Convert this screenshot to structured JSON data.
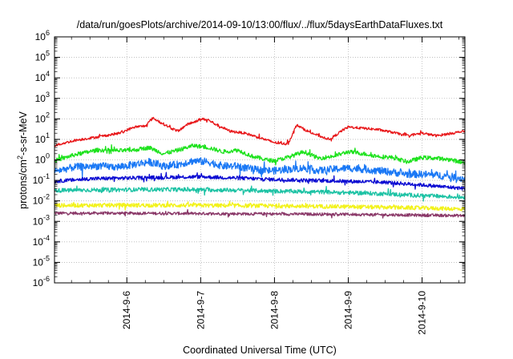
{
  "chart_data": {
    "type": "line",
    "title": "/data/run/goesPlots/archive/2014-09-10/13:00/flux/../flux/5daysEarthDataFluxes.txt",
    "xlabel": "Coordinated Universal Time (UTC)",
    "ylabel": {
      "prefix": "protons/cm",
      "sup": "2",
      "suffix": "-s-sr-MeV"
    },
    "yscale": "log",
    "ylim": [
      1e-06,
      1000000.0
    ],
    "xlim": [
      5.02,
      10.58
    ],
    "x_unit": "day of September 2014",
    "grid": true,
    "legend": "none",
    "y_ticks": [
      {
        "value": -6,
        "base": "10",
        "exp": "-6"
      },
      {
        "value": -5,
        "base": "10",
        "exp": "-5"
      },
      {
        "value": -4,
        "base": "10",
        "exp": "-4"
      },
      {
        "value": -3,
        "base": "10",
        "exp": "-3"
      },
      {
        "value": -2,
        "base": "10",
        "exp": "-2"
      },
      {
        "value": -1,
        "base": "10",
        "exp": "-1"
      },
      {
        "value": 0,
        "base": "10",
        "exp": "0"
      },
      {
        "value": 1,
        "base": "10",
        "exp": "1"
      },
      {
        "value": 2,
        "base": "10",
        "exp": "2"
      },
      {
        "value": 3,
        "base": "10",
        "exp": "3"
      },
      {
        "value": 4,
        "base": "10",
        "exp": "4"
      },
      {
        "value": 5,
        "base": "10",
        "exp": "5"
      },
      {
        "value": 6,
        "base": "10",
        "exp": "6"
      }
    ],
    "x_ticks": [
      {
        "value": 6,
        "label": "2014-9-6"
      },
      {
        "value": 7,
        "label": "2014-9-7"
      },
      {
        "value": 8,
        "label": "2014-9-8"
      },
      {
        "value": 9,
        "label": "2014-9-9"
      },
      {
        "value": 10,
        "label": "2014-9-10"
      }
    ],
    "series": [
      {
        "color": "#e8171a",
        "noise": 0.06,
        "x": [
          5.02,
          5.3,
          5.6,
          5.9,
          6.1,
          6.25,
          6.35,
          6.45,
          6.6,
          6.7,
          6.8,
          6.95,
          7.0,
          7.1,
          7.2,
          7.4,
          7.6,
          7.8,
          8.0,
          8.15,
          8.2,
          8.3,
          8.45,
          8.6,
          8.75,
          8.85,
          8.9,
          9.0,
          9.2,
          9.4,
          9.6,
          9.8,
          10.0,
          10.2,
          10.4,
          10.58
        ],
        "y": [
          5,
          9,
          13,
          20,
          40,
          45,
          110,
          70,
          35,
          25,
          50,
          80,
          100,
          90,
          55,
          25,
          20,
          12,
          7,
          6,
          8,
          50,
          25,
          15,
          10,
          18,
          25,
          40,
          35,
          30,
          22,
          15,
          20,
          15,
          20,
          25
        ]
      },
      {
        "color": "#1ee21e",
        "noise": 0.1,
        "x": [
          5.02,
          5.3,
          5.6,
          5.9,
          6.1,
          6.3,
          6.5,
          6.7,
          6.9,
          7.1,
          7.3,
          7.5,
          7.7,
          7.9,
          8.0,
          8.2,
          8.4,
          8.6,
          8.8,
          9.0,
          9.2,
          9.4,
          9.6,
          9.8,
          10.0,
          10.2,
          10.4,
          10.58
        ],
        "y": [
          0.9,
          1.8,
          3,
          2.8,
          3,
          4,
          2,
          3,
          5,
          4,
          2.5,
          3,
          1.5,
          1,
          0.9,
          1.4,
          2.5,
          1.2,
          1.5,
          2.5,
          2,
          1.5,
          1.3,
          0.8,
          1.3,
          1.2,
          1,
          0.7
        ]
      },
      {
        "color": "#1a78f5",
        "noise": 0.18,
        "x": [
          5.02,
          5.3,
          5.6,
          5.9,
          6.1,
          6.3,
          6.5,
          6.7,
          6.9,
          7.1,
          7.3,
          7.5,
          7.7,
          7.9,
          8.0,
          8.2,
          8.4,
          8.6,
          8.8,
          9.0,
          9.2,
          9.4,
          9.6,
          9.8,
          10.0,
          10.2,
          10.4,
          10.58
        ],
        "y": [
          0.28,
          0.45,
          0.5,
          0.45,
          0.6,
          0.8,
          0.5,
          0.6,
          0.9,
          0.8,
          0.5,
          0.5,
          0.35,
          0.3,
          0.3,
          0.35,
          0.4,
          0.3,
          0.35,
          0.4,
          0.35,
          0.3,
          0.25,
          0.2,
          0.2,
          0.18,
          0.15,
          0.12
        ]
      },
      {
        "color": "#0a0ad2",
        "noise": 0.09,
        "x": [
          5.02,
          5.5,
          6.0,
          6.5,
          7.0,
          7.5,
          8.0,
          8.5,
          9.0,
          9.5,
          10.0,
          10.58
        ],
        "y": [
          0.09,
          0.12,
          0.13,
          0.14,
          0.15,
          0.13,
          0.11,
          0.1,
          0.09,
          0.08,
          0.06,
          0.04
        ]
      },
      {
        "color": "#1cc2a4",
        "noise": 0.1,
        "x": [
          5.02,
          5.5,
          6.0,
          6.5,
          7.0,
          7.5,
          8.0,
          8.5,
          9.0,
          9.5,
          10.0,
          10.58
        ],
        "y": [
          0.032,
          0.034,
          0.035,
          0.036,
          0.035,
          0.033,
          0.03,
          0.028,
          0.025,
          0.022,
          0.018,
          0.015
        ]
      },
      {
        "color": "#f2f21a",
        "noise": 0.1,
        "x": [
          5.02,
          6.0,
          7.0,
          8.0,
          9.0,
          10.0,
          10.58
        ],
        "y": [
          0.006,
          0.0062,
          0.006,
          0.0057,
          0.0052,
          0.0045,
          0.004
        ]
      },
      {
        "color": "#8a3868",
        "noise": 0.07,
        "x": [
          5.02,
          6.0,
          7.0,
          8.0,
          9.0,
          10.0,
          10.58
        ],
        "y": [
          0.0025,
          0.0025,
          0.0024,
          0.0023,
          0.0022,
          0.002,
          0.0019
        ]
      }
    ]
  }
}
